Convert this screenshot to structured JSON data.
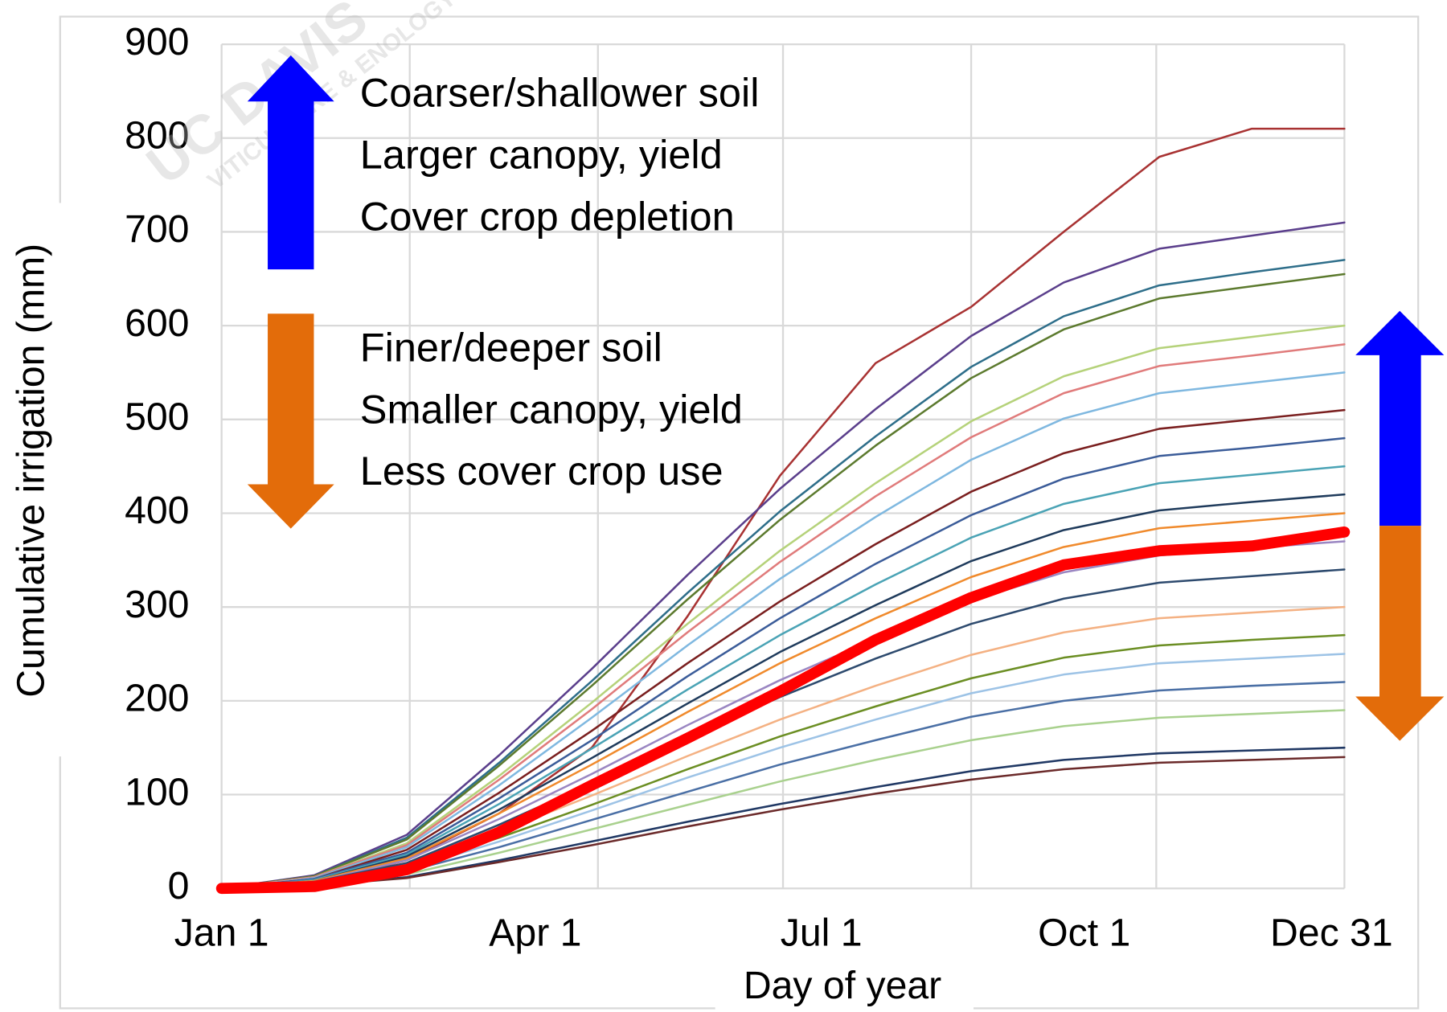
{
  "chart_data": {
    "type": "line",
    "ylabel": "Cumulative irrigation (mm)",
    "xlabel": "Day of  year",
    "watermark": [
      "UC DAVIS",
      "VITICULTURE & ENOLOGY"
    ],
    "annotations_up": [
      "Coarser/shallower soil",
      "Larger canopy, yield",
      "Cover crop depletion"
    ],
    "annotations_down": [
      "Finer/deeper soil",
      "Smaller canopy, yield",
      "Less cover crop use"
    ],
    "xlim": [
      1,
      365
    ],
    "xticks": [
      {
        "value": 1,
        "label": "Jan 1"
      },
      {
        "value": 91,
        "label": "Apr 1"
      },
      {
        "value": 182,
        "label": "Jul 1"
      },
      {
        "value": 274,
        "label": "Oct 1"
      },
      {
        "value": 365,
        "label": "Dec 31"
      }
    ],
    "x_gridlines": [
      1,
      62,
      123,
      183,
      244,
      304,
      365
    ],
    "ylim": [
      0,
      900
    ],
    "yticks": [
      0,
      100,
      200,
      300,
      400,
      500,
      600,
      700,
      800,
      900
    ],
    "grid": true,
    "x": [
      1,
      31,
      61,
      91,
      121,
      152,
      182,
      213,
      244,
      274,
      305,
      335,
      365
    ],
    "series": [
      {
        "color": "#a83232",
        "values": [
          0,
          5,
          30,
          80,
          150,
          290,
          440,
          560,
          620,
          700,
          780,
          810,
          810
        ]
      },
      {
        "color": "#5b3f8c",
        "values": [
          0,
          14,
          57,
          142,
          234,
          334,
          426,
          511,
          589,
          646,
          682,
          696,
          710
        ]
      },
      {
        "color": "#2e6e8a",
        "values": [
          0,
          13,
          54,
          134,
          221,
          315,
          402,
          482,
          556,
          610,
          643,
          657,
          670
        ]
      },
      {
        "color": "#5c7a2e",
        "values": [
          0,
          13,
          52,
          131,
          216,
          308,
          393,
          472,
          544,
          596,
          629,
          642,
          655
        ]
      },
      {
        "color": "#b5d27a",
        "values": [
          0,
          12,
          48,
          120,
          198,
          282,
          360,
          432,
          498,
          546,
          576,
          588,
          600
        ]
      },
      {
        "color": "#e07b7b",
        "values": [
          0,
          12,
          46,
          116,
          191,
          273,
          348,
          418,
          481,
          528,
          557,
          568,
          580
        ]
      },
      {
        "color": "#7fb8e0",
        "values": [
          0,
          11,
          44,
          110,
          182,
          259,
          330,
          396,
          457,
          501,
          528,
          539,
          550
        ]
      },
      {
        "color": "#7a1f1f",
        "values": [
          0,
          10,
          41,
          102,
          168,
          240,
          306,
          367,
          423,
          464,
          490,
          500,
          510
        ]
      },
      {
        "color": "#3b5c99",
        "values": [
          0,
          10,
          38,
          96,
          158,
          226,
          288,
          346,
          398,
          437,
          461,
          470,
          480
        ]
      },
      {
        "color": "#4aa3b5",
        "values": [
          0,
          9,
          36,
          90,
          149,
          212,
          270,
          324,
          374,
          410,
          432,
          441,
          450
        ]
      },
      {
        "color": "#1f3b5c",
        "values": [
          0,
          8,
          34,
          84,
          139,
          197,
          252,
          302,
          349,
          382,
          403,
          412,
          420
        ]
      },
      {
        "color": "#f08a2c",
        "values": [
          0,
          8,
          32,
          80,
          132,
          188,
          240,
          288,
          332,
          364,
          384,
          392,
          400
        ]
      },
      {
        "color": "#9a86c2",
        "values": [
          0,
          7,
          30,
          74,
          122,
          174,
          222,
          266,
          307,
          337,
          355,
          363,
          370
        ]
      },
      {
        "color": "#2d4a6e",
        "values": [
          0,
          7,
          27,
          68,
          112,
          160,
          204,
          245,
          282,
          309,
          326,
          333,
          340
        ]
      },
      {
        "color": "#f4b183",
        "values": [
          0,
          6,
          24,
          60,
          99,
          141,
          180,
          216,
          249,
          273,
          288,
          294,
          300
        ]
      },
      {
        "color": "#6b8e23",
        "values": [
          0,
          5,
          22,
          54,
          89,
          127,
          162,
          194,
          224,
          246,
          259,
          265,
          270
        ]
      },
      {
        "color": "#9dc3e6",
        "values": [
          0,
          5,
          20,
          50,
          83,
          118,
          150,
          180,
          208,
          228,
          240,
          245,
          250
        ]
      },
      {
        "color": "#4a6fa5",
        "values": [
          0,
          4,
          18,
          44,
          73,
          103,
          132,
          158,
          183,
          200,
          211,
          216,
          220
        ]
      },
      {
        "color": "#a9d18e",
        "values": [
          0,
          4,
          15,
          38,
          63,
          89,
          114,
          137,
          158,
          173,
          182,
          186,
          190
        ]
      },
      {
        "color": "#203864",
        "values": [
          0,
          3,
          12,
          30,
          50,
          71,
          90,
          108,
          125,
          137,
          144,
          147,
          150
        ]
      },
      {
        "color": "#6b2a2a",
        "values": [
          0,
          3,
          11,
          28,
          46,
          66,
          84,
          101,
          116,
          127,
          134,
          137,
          140
        ]
      },
      {
        "color": "#ff0000",
        "width": 12,
        "values": [
          0,
          2,
          20,
          60,
          110,
          160,
          210,
          265,
          310,
          345,
          360,
          365,
          380
        ]
      }
    ]
  }
}
